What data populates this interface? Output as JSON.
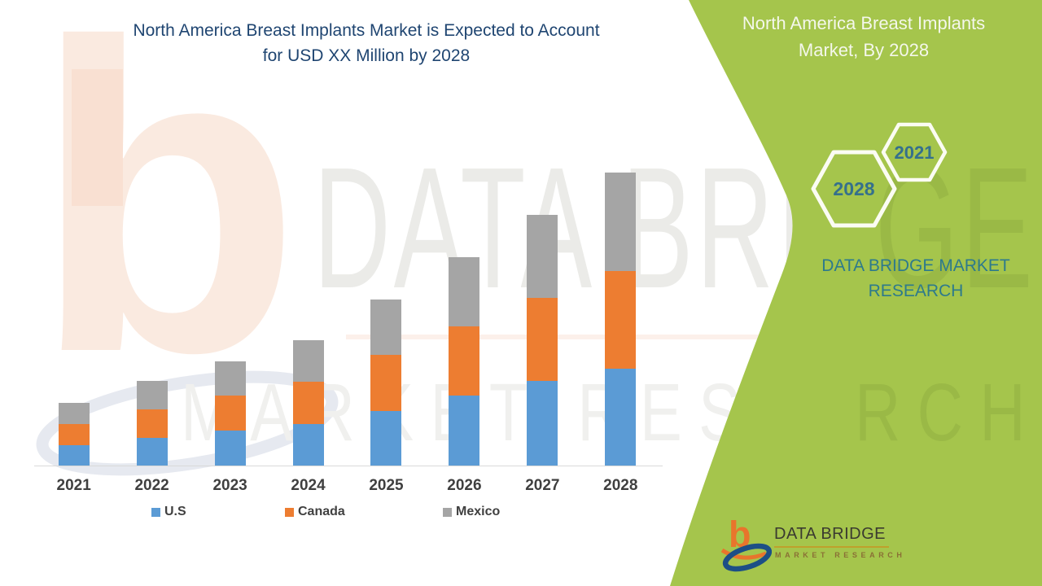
{
  "infographic": {
    "main_title_line1": "North America Breast Implants Market is Expected to Account",
    "main_title_line2": "for USD XX Million by 2028",
    "title_color": "#1f4571"
  },
  "chart_data": {
    "type": "bar",
    "stacked": true,
    "title": "North America Breast Implants Market is Expected to Account for USD XX Million by 2028",
    "categories": [
      "2021",
      "2022",
      "2023",
      "2024",
      "2025",
      "2026",
      "2027",
      "2028"
    ],
    "series": [
      {
        "name": "U.S",
        "color": "#5b9bd5",
        "values": [
          25,
          34,
          43,
          51,
          67,
          86,
          104,
          119
        ]
      },
      {
        "name": "Canada",
        "color": "#ed7d31",
        "values": [
          26,
          35,
          43,
          52,
          69,
          85,
          102,
          120
        ]
      },
      {
        "name": "Mexico",
        "color": "#a5a5a5",
        "values": [
          26,
          35,
          42,
          51,
          68,
          85,
          102,
          121
        ]
      }
    ],
    "values_note": "No numeric axis or data labels are shown in the image (values stated as 'USD XX Million'); series values are estimated relative heights read from the bars.",
    "xlabel": "",
    "ylabel": "",
    "ylim": [
      0,
      380
    ],
    "grid": false,
    "value_axis_visible": false,
    "legend_position": "bottom",
    "legend_labels": [
      "U.S",
      "Canada",
      "Mexico"
    ]
  },
  "side_panel": {
    "background_color": "#a5c54c",
    "title_line1": "North America Breast Implants",
    "title_line2": "Market, By 2028",
    "hexagon_large_label": "2028",
    "hexagon_small_label": "2021",
    "hexagon_label_color": "#35708c",
    "brand_line1": "DATA BRIDGE MARKET",
    "brand_line2": "RESEARCH",
    "brand_color": "#2d7a8c"
  },
  "footer_logo": {
    "monogram": "b",
    "brand_name": "DATA BRIDGE",
    "tagline": "MARKET RESEARCH"
  },
  "watermarks": {
    "logo_letter": "b",
    "text_line1": "DATA BRIDGE",
    "text_line2": "MARKET RESEARCH",
    "panel_fragment1": "GE",
    "panel_fragment2": "RCH"
  }
}
